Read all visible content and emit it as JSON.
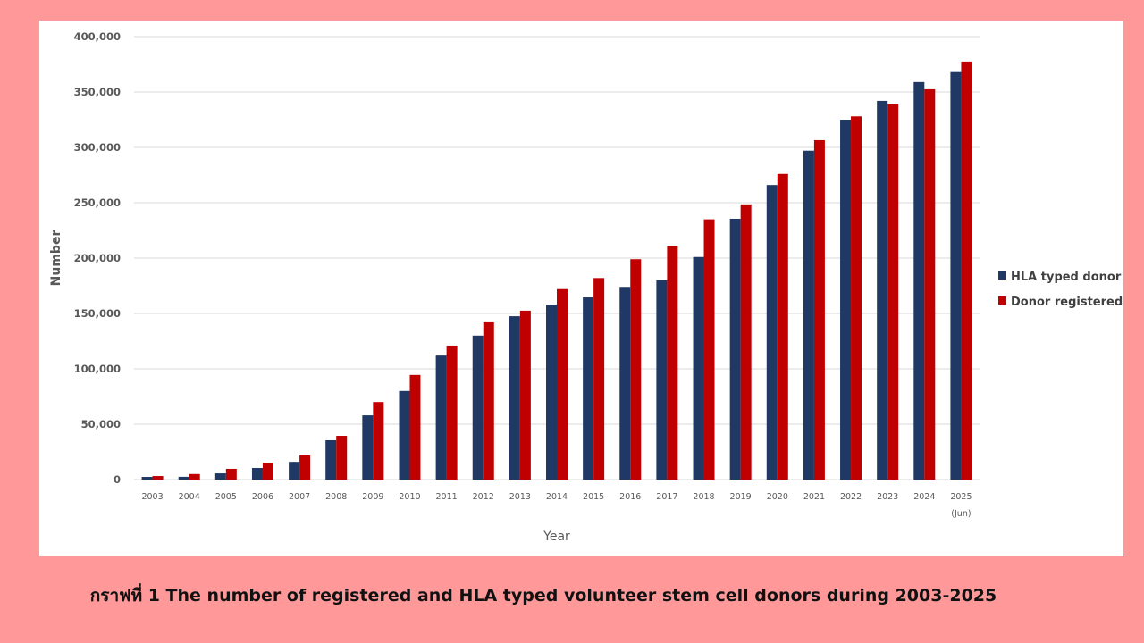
{
  "chart_data": {
    "type": "bar",
    "title": "",
    "xlabel": "Year",
    "ylabel": "Number",
    "ylim": [
      0,
      400000
    ],
    "yticks": [
      0,
      50000,
      100000,
      150000,
      200000,
      250000,
      300000,
      350000,
      400000
    ],
    "ytick_labels": [
      "0",
      "50,000",
      "100,000",
      "150,000",
      "200,000",
      "250,000",
      "300,000",
      "350,000",
      "400,000"
    ],
    "grid": true,
    "legend_position": "right",
    "categories": [
      "2003",
      "2004",
      "2005",
      "2006",
      "2007",
      "2008",
      "2009",
      "2010",
      "2011",
      "2012",
      "2013",
      "2014",
      "2015",
      "2016",
      "2017",
      "2018",
      "2019",
      "2020",
      "2021",
      "2022",
      "2023",
      "2024",
      "2025"
    ],
    "category_notes": {
      "2025": "(Jun)"
    },
    "series": [
      {
        "name": "HLA typed donor",
        "color": "#1f3864",
        "values": [
          2400,
          2500,
          5600,
          10500,
          16000,
          35500,
          58000,
          80000,
          112000,
          130000,
          147500,
          158000,
          164500,
          174000,
          180000,
          201000,
          235500,
          266000,
          297000,
          325000,
          342000,
          359000,
          368000
        ]
      },
      {
        "name": "Donor registered",
        "color": "#c00000",
        "values": [
          3200,
          5000,
          9700,
          15300,
          21800,
          39500,
          70000,
          94500,
          121000,
          142000,
          152500,
          172000,
          182000,
          199000,
          211000,
          235000,
          248500,
          276000,
          306500,
          328000,
          339500,
          352500,
          377500
        ]
      }
    ]
  },
  "caption": "กราฟที่ 1 The number of registered and HLA typed volunteer stem cell donors during 2003-2025"
}
